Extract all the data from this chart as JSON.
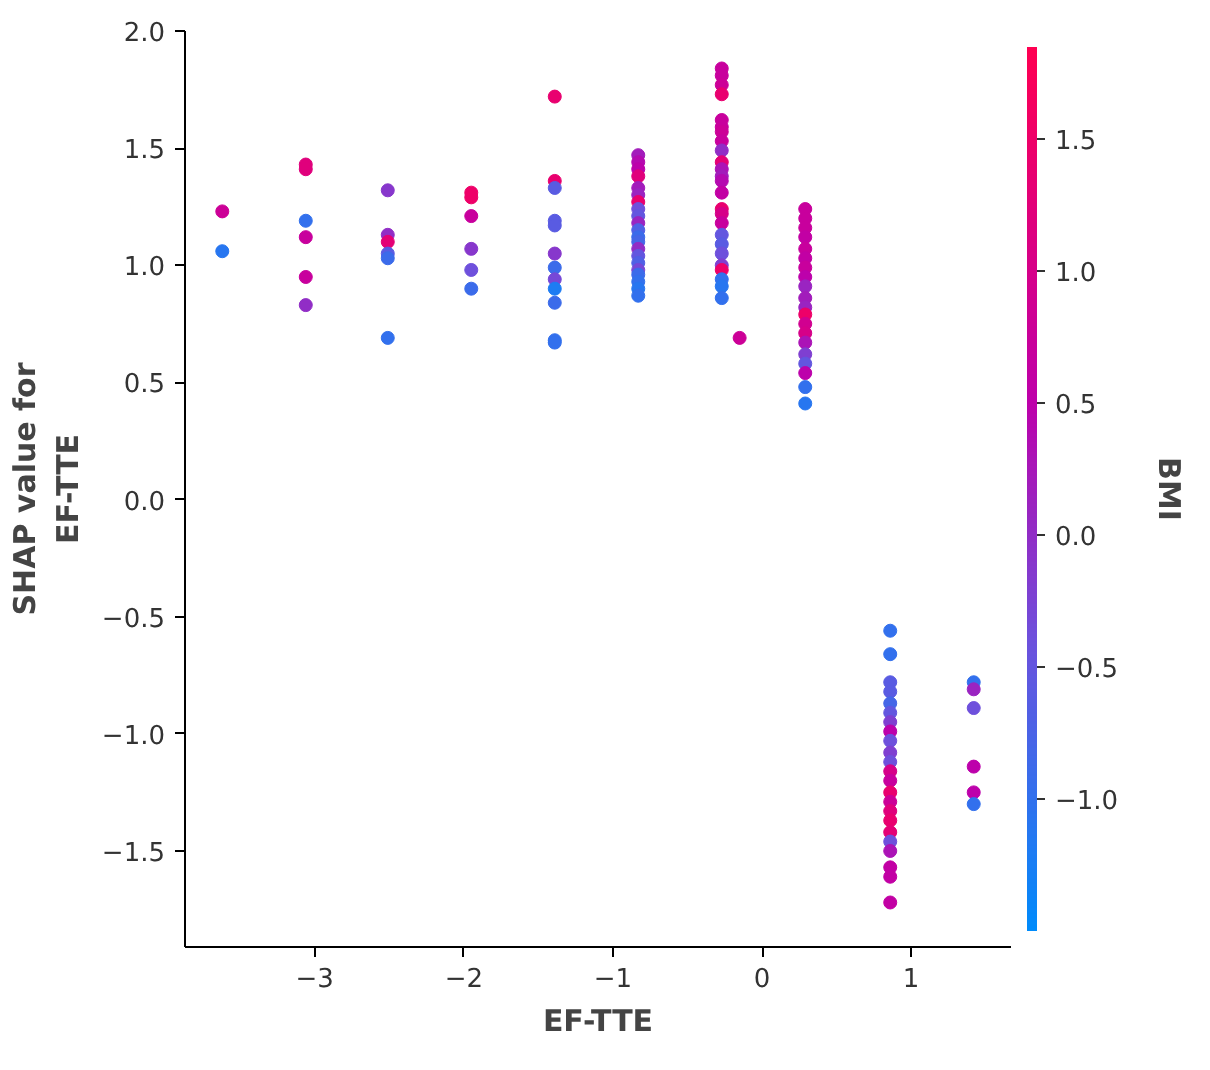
{
  "chart_data": {
    "type": "scatter",
    "xlabel": "EF-TTE",
    "ylabel": "SHAP value for\nEF-TTE",
    "clabel": "BMI",
    "xlim": [
      -3.87,
      1.67
    ],
    "xticks": [
      -3,
      -2,
      -1,
      0,
      1
    ],
    "ylim": [
      -1.91,
      2.0
    ],
    "yticks": [
      -1.5,
      {
        "value": -1,
        "label": "−1.0"
      },
      -0.5,
      {
        "value": 0,
        "label": "0.0"
      },
      0.5,
      {
        "value": 1,
        "label": "1.0"
      },
      1.5,
      {
        "value": 2,
        "label": "2.0"
      }
    ],
    "clim": [
      -1.5,
      1.85
    ],
    "cticks": [
      {
        "value": -1,
        "label": "−1.0"
      },
      -0.5,
      {
        "value": 0,
        "label": "0.0"
      },
      0.5,
      {
        "value": 1,
        "label": "1.0"
      },
      1.5
    ],
    "grid": false,
    "marker": "circle",
    "x": [
      -3.62,
      -3.62,
      -3.06,
      -3.06,
      -3.06,
      -3.06,
      -3.06,
      -3.06,
      -2.51,
      -2.51,
      -2.51,
      -2.51,
      -2.51,
      -2.51,
      -1.95,
      -1.95,
      -1.95,
      -1.95,
      -1.95,
      -1.95,
      -1.39,
      -1.39,
      -1.39,
      -1.39,
      -1.39,
      -1.39,
      -1.39,
      -1.39,
      -1.39,
      -1.39,
      -1.39,
      -1.39,
      -0.83,
      -0.83,
      -0.83,
      -0.83,
      -0.83,
      -0.83,
      -0.83,
      -0.83,
      -0.83,
      -0.83,
      -0.83,
      -0.83,
      -0.83,
      -0.83,
      -0.83,
      -0.83,
      -0.83,
      -0.83,
      -0.83,
      -0.83,
      -0.83,
      -0.27,
      -0.27,
      -0.27,
      -0.27,
      -0.27,
      -0.27,
      -0.27,
      -0.27,
      -0.27,
      -0.27,
      -0.27,
      -0.27,
      -0.27,
      -0.27,
      -0.27,
      -0.27,
      -0.27,
      -0.27,
      -0.27,
      -0.27,
      -0.27,
      -0.27,
      -0.27,
      -0.27,
      -0.27,
      -0.15,
      0.29,
      0.29,
      0.29,
      0.29,
      0.29,
      0.29,
      0.29,
      0.29,
      0.29,
      0.29,
      0.29,
      0.29,
      0.29,
      0.29,
      0.29,
      0.29,
      0.29,
      0.29,
      0.29,
      0.29,
      0.86,
      0.86,
      0.86,
      0.86,
      0.86,
      0.86,
      0.86,
      0.86,
      0.86,
      0.86,
      0.86,
      0.86,
      0.86,
      0.86,
      0.86,
      0.86,
      0.86,
      0.86,
      0.86,
      0.86,
      0.86,
      0.86,
      0.86,
      1.42,
      1.42,
      1.42,
      1.42,
      1.42,
      1.42
    ],
    "values": [
      1.23,
      1.06,
      1.43,
      1.41,
      1.19,
      1.12,
      0.95,
      0.83,
      1.32,
      1.13,
      1.1,
      1.05,
      1.03,
      0.69,
      1.31,
      1.29,
      1.21,
      1.07,
      0.98,
      0.9,
      1.72,
      1.36,
      1.33,
      1.19,
      1.17,
      1.05,
      0.99,
      0.94,
      0.9,
      0.84,
      0.68,
      0.67,
      1.47,
      1.44,
      1.41,
      1.38,
      1.33,
      1.3,
      1.27,
      1.24,
      1.21,
      1.18,
      1.15,
      1.12,
      1.1,
      1.07,
      1.04,
      1.01,
      0.98,
      0.96,
      0.93,
      0.9,
      0.87,
      1.84,
      1.81,
      1.77,
      1.73,
      1.62,
      1.59,
      1.57,
      1.53,
      1.49,
      1.44,
      1.41,
      1.38,
      1.36,
      1.31,
      1.24,
      1.22,
      1.18,
      1.13,
      1.09,
      1.05,
      1.0,
      0.98,
      0.94,
      0.91,
      0.86,
      0.69,
      1.24,
      1.2,
      1.16,
      1.12,
      1.07,
      1.03,
      0.99,
      0.95,
      0.91,
      0.86,
      0.82,
      0.79,
      0.75,
      0.71,
      0.67,
      0.62,
      0.58,
      0.54,
      0.48,
      0.41,
      -0.56,
      -0.66,
      -0.78,
      -0.82,
      -0.87,
      -0.91,
      -0.95,
      -0.99,
      -1.03,
      -1.08,
      -1.12,
      -1.16,
      -1.2,
      -1.25,
      -1.29,
      -1.33,
      -1.37,
      -1.42,
      -1.46,
      -1.5,
      -1.57,
      -1.61,
      -1.72,
      -0.78,
      -0.81,
      -0.89,
      -1.14,
      -1.25,
      -1.3
    ],
    "cvalues": [
      0.8,
      -1.1,
      1.2,
      1.2,
      -1.0,
      0.7,
      0.7,
      0.0,
      -0.1,
      0.0,
      1.3,
      -0.6,
      -0.9,
      -1.0,
      1.5,
      1.5,
      0.7,
      -0.1,
      -0.4,
      -0.9,
      1.4,
      1.4,
      -0.6,
      -0.6,
      -0.6,
      -0.1,
      -0.9,
      -0.3,
      -1.2,
      -0.9,
      -1.0,
      -1.0,
      0.2,
      0.4,
      0.5,
      1.2,
      0.2,
      0.1,
      1.4,
      -0.4,
      -0.5,
      0.1,
      -0.7,
      -0.9,
      -0.8,
      0.0,
      -0.5,
      -0.7,
      -0.3,
      -0.9,
      -1.0,
      -1.1,
      -1.0,
      0.7,
      0.7,
      0.8,
      1.4,
      0.7,
      0.7,
      0.8,
      0.7,
      0.0,
      1.3,
      0.3,
      0.2,
      0.4,
      0.6,
      1.4,
      1.0,
      0.7,
      -0.5,
      -0.6,
      -0.4,
      -0.2,
      1.5,
      -1.0,
      -1.1,
      -1.0,
      0.8,
      0.7,
      0.7,
      0.7,
      0.6,
      0.7,
      0.6,
      0.7,
      0.5,
      0.1,
      0.2,
      0.1,
      1.5,
      0.9,
      1.0,
      0.3,
      -0.2,
      -0.5,
      0.5,
      -1.0,
      -1.1,
      -1.0,
      -1.0,
      -0.6,
      -0.6,
      -0.8,
      -0.5,
      -0.2,
      0.5,
      -0.4,
      -0.2,
      -0.4,
      1.0,
      0.7,
      1.4,
      0.8,
      1.2,
      1.4,
      1.3,
      -0.4,
      0.3,
      0.6,
      0.6,
      0.6,
      -1.0,
      0.1,
      -0.4,
      0.5,
      0.5,
      -1.0
    ]
  }
}
